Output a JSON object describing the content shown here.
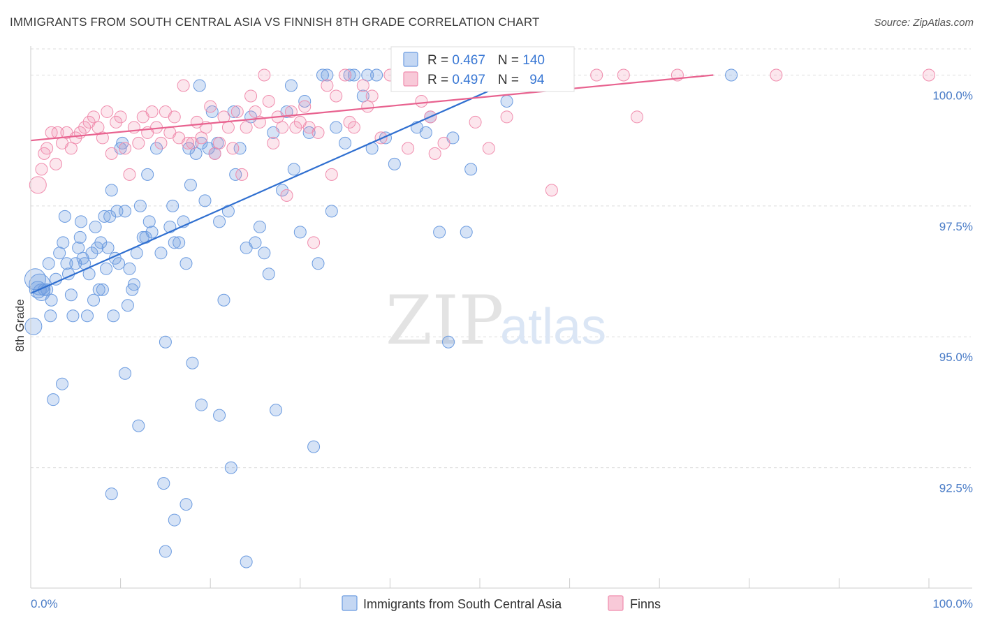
{
  "header": {
    "title": "IMMIGRANTS FROM SOUTH CENTRAL ASIA VS FINNISH 8TH GRADE CORRELATION CHART",
    "source": "Source: ZipAtlas.com"
  },
  "watermark": {
    "zip": "ZIP",
    "atlas": "atlas"
  },
  "legend": {
    "rows": [
      {
        "r_label": "R = ",
        "r_value": "0.467",
        "n_label": "N = ",
        "n_value": "140",
        "color": "#6b9be0"
      },
      {
        "r_label": "R = ",
        "r_value": "0.497",
        "n_label": "N = ",
        "n_value": "94",
        "color": "#f08cad"
      }
    ]
  },
  "bottom_legend": [
    {
      "label": "Immigrants from South Central Asia",
      "color": "#6b9be0"
    },
    {
      "label": "Finns",
      "color": "#f08cad"
    }
  ],
  "chart_data": {
    "type": "scatter",
    "title": "IMMIGRANTS FROM SOUTH CENTRAL ASIA VS FINNISH 8TH GRADE CORRELATION CHART",
    "xlabel": "",
    "ylabel": "8th Grade",
    "xlim": [
      0,
      100
    ],
    "ylim": [
      90.2,
      100.5
    ],
    "y_ticks": [
      {
        "value": 92.5,
        "label": "92.5%"
      },
      {
        "value": 95.0,
        "label": "95.0%"
      },
      {
        "value": 97.5,
        "label": "97.5%"
      },
      {
        "value": 100.0,
        "label": "100.0%"
      }
    ],
    "x_tick_labels": {
      "min": "0.0%",
      "max": "100.0%"
    },
    "grid": true,
    "series": [
      {
        "name": "Immigrants from South Central Asia",
        "color": "#6b9be0",
        "trend": {
          "x": [
            0.0,
            55.0
          ],
          "y": [
            95.83,
            100.0
          ]
        },
        "points": [
          [
            0.3,
            95.2
          ],
          [
            0.5,
            96.1
          ],
          [
            0.8,
            95.9
          ],
          [
            1.0,
            96.0
          ],
          [
            1.2,
            95.85
          ],
          [
            1.5,
            95.9
          ],
          [
            1.8,
            95.9
          ],
          [
            2.0,
            96.4
          ],
          [
            2.2,
            95.4
          ],
          [
            2.3,
            95.7
          ],
          [
            2.5,
            93.8
          ],
          [
            2.8,
            96.1
          ],
          [
            3.2,
            96.6
          ],
          [
            3.5,
            94.1
          ],
          [
            3.6,
            96.8
          ],
          [
            3.8,
            97.3
          ],
          [
            4.0,
            96.4
          ],
          [
            4.2,
            96.2
          ],
          [
            4.5,
            95.8
          ],
          [
            4.7,
            95.4
          ],
          [
            5.0,
            96.4
          ],
          [
            5.3,
            96.7
          ],
          [
            5.5,
            96.9
          ],
          [
            5.6,
            97.2
          ],
          [
            5.8,
            96.5
          ],
          [
            6.0,
            96.4
          ],
          [
            6.3,
            95.4
          ],
          [
            6.5,
            96.2
          ],
          [
            6.8,
            96.6
          ],
          [
            7.0,
            95.7
          ],
          [
            7.2,
            97.1
          ],
          [
            7.4,
            96.7
          ],
          [
            7.6,
            95.9
          ],
          [
            7.8,
            96.8
          ],
          [
            8.0,
            95.9
          ],
          [
            8.2,
            97.3
          ],
          [
            8.4,
            96.3
          ],
          [
            8.6,
            96.7
          ],
          [
            8.8,
            97.3
          ],
          [
            9.0,
            97.8
          ],
          [
            9.2,
            95.4
          ],
          [
            9.4,
            96.5
          ],
          [
            9.6,
            97.4
          ],
          [
            9.8,
            96.4
          ],
          [
            10.0,
            98.6
          ],
          [
            10.2,
            98.7
          ],
          [
            10.5,
            97.4
          ],
          [
            10.8,
            95.6
          ],
          [
            11.0,
            96.3
          ],
          [
            11.3,
            95.9
          ],
          [
            11.5,
            96.0
          ],
          [
            11.8,
            96.6
          ],
          [
            12.2,
            97.5
          ],
          [
            12.5,
            96.9
          ],
          [
            12.8,
            96.9
          ],
          [
            13.0,
            98.1
          ],
          [
            13.2,
            97.2
          ],
          [
            13.5,
            97.0
          ],
          [
            14.0,
            98.6
          ],
          [
            14.5,
            96.6
          ],
          [
            15.0,
            94.9
          ],
          [
            15.5,
            97.1
          ],
          [
            15.8,
            97.5
          ],
          [
            16.0,
            96.8
          ],
          [
            16.5,
            96.8
          ],
          [
            17.0,
            97.2
          ],
          [
            17.3,
            96.4
          ],
          [
            17.6,
            98.6
          ],
          [
            17.8,
            97.9
          ],
          [
            18.0,
            94.5
          ],
          [
            18.4,
            98.5
          ],
          [
            18.8,
            99.8
          ],
          [
            19.0,
            98.7
          ],
          [
            19.4,
            97.6
          ],
          [
            19.8,
            98.6
          ],
          [
            20.2,
            99.3
          ],
          [
            20.5,
            98.5
          ],
          [
            20.8,
            98.7
          ],
          [
            21.0,
            97.2
          ],
          [
            21.5,
            95.7
          ],
          [
            22.0,
            97.4
          ],
          [
            22.3,
            92.5
          ],
          [
            22.6,
            99.3
          ],
          [
            22.8,
            98.1
          ],
          [
            23.3,
            98.6
          ],
          [
            24.0,
            96.7
          ],
          [
            24.5,
            99.2
          ],
          [
            25.0,
            96.8
          ],
          [
            25.5,
            97.1
          ],
          [
            26.0,
            96.6
          ],
          [
            26.5,
            96.2
          ],
          [
            27.0,
            98.9
          ],
          [
            27.3,
            93.6
          ],
          [
            28.0,
            97.8
          ],
          [
            28.5,
            99.3
          ],
          [
            29.0,
            99.8
          ],
          [
            29.3,
            98.2
          ],
          [
            30.0,
            97.0
          ],
          [
            30.5,
            99.5
          ],
          [
            31.0,
            98.9
          ],
          [
            31.5,
            92.9
          ],
          [
            32.0,
            96.4
          ],
          [
            32.5,
            100.0
          ],
          [
            33.0,
            100.0
          ],
          [
            33.5,
            97.4
          ],
          [
            34.0,
            99.0
          ],
          [
            35.0,
            98.7
          ],
          [
            35.5,
            100.0
          ],
          [
            36.0,
            100.0
          ],
          [
            37.0,
            99.6
          ],
          [
            37.5,
            100.0
          ],
          [
            38.0,
            98.6
          ],
          [
            38.5,
            100.0
          ],
          [
            39.5,
            98.8
          ],
          [
            40.5,
            98.3
          ],
          [
            41.0,
            100.0
          ],
          [
            42.0,
            100.0
          ],
          [
            43.0,
            99.0
          ],
          [
            44.0,
            98.9
          ],
          [
            44.5,
            99.2
          ],
          [
            45.5,
            97.0
          ],
          [
            46.0,
            100.0
          ],
          [
            46.5,
            94.9
          ],
          [
            47.0,
            98.8
          ],
          [
            48.5,
            97.0
          ],
          [
            49.0,
            98.2
          ],
          [
            53.0,
            99.5
          ],
          [
            54.0,
            99.8
          ],
          [
            55.0,
            100.0
          ],
          [
            78.0,
            100.0
          ],
          [
            9.0,
            92.0
          ],
          [
            12.0,
            93.3
          ],
          [
            14.8,
            92.2
          ],
          [
            16.0,
            91.5
          ],
          [
            17.3,
            91.8
          ],
          [
            19.0,
            93.7
          ],
          [
            21.0,
            93.5
          ],
          [
            24.0,
            90.7
          ],
          [
            15.0,
            90.9
          ],
          [
            10.5,
            94.3
          ]
        ]
      },
      {
        "name": "Finns",
        "color": "#f08cad",
        "trend": {
          "x": [
            0.0,
            76.0
          ],
          "y": [
            98.75,
            100.0
          ]
        },
        "points": [
          [
            0.8,
            97.9
          ],
          [
            1.2,
            98.2
          ],
          [
            1.5,
            98.5
          ],
          [
            1.8,
            98.6
          ],
          [
            2.3,
            98.9
          ],
          [
            2.8,
            98.3
          ],
          [
            3.0,
            98.9
          ],
          [
            3.5,
            98.7
          ],
          [
            4.0,
            98.9
          ],
          [
            4.5,
            98.6
          ],
          [
            5.0,
            98.8
          ],
          [
            5.5,
            98.9
          ],
          [
            6.0,
            99.0
          ],
          [
            6.5,
            99.1
          ],
          [
            7.0,
            99.2
          ],
          [
            7.5,
            99.0
          ],
          [
            8.0,
            98.8
          ],
          [
            8.5,
            99.3
          ],
          [
            9.0,
            98.5
          ],
          [
            9.5,
            99.1
          ],
          [
            10.0,
            99.2
          ],
          [
            10.5,
            98.6
          ],
          [
            11.0,
            98.1
          ],
          [
            11.5,
            99.0
          ],
          [
            12.0,
            98.7
          ],
          [
            12.5,
            99.2
          ],
          [
            13.0,
            98.9
          ],
          [
            13.5,
            99.3
          ],
          [
            14.0,
            99.0
          ],
          [
            14.5,
            98.7
          ],
          [
            15.0,
            99.3
          ],
          [
            15.5,
            98.9
          ],
          [
            16.0,
            99.2
          ],
          [
            16.5,
            98.8
          ],
          [
            17.0,
            99.8
          ],
          [
            17.5,
            98.7
          ],
          [
            18.0,
            98.7
          ],
          [
            18.5,
            99.1
          ],
          [
            19.0,
            98.8
          ],
          [
            19.5,
            99.0
          ],
          [
            20.0,
            99.4
          ],
          [
            20.5,
            98.5
          ],
          [
            21.0,
            98.7
          ],
          [
            21.5,
            99.2
          ],
          [
            22.0,
            99.0
          ],
          [
            22.5,
            98.6
          ],
          [
            23.0,
            99.3
          ],
          [
            23.5,
            98.1
          ],
          [
            24.0,
            99.0
          ],
          [
            24.5,
            99.6
          ],
          [
            25.0,
            99.3
          ],
          [
            25.5,
            99.1
          ],
          [
            26.0,
            100.0
          ],
          [
            26.5,
            99.5
          ],
          [
            27.0,
            98.7
          ],
          [
            27.5,
            99.2
          ],
          [
            28.0,
            99.0
          ],
          [
            28.5,
            97.7
          ],
          [
            29.0,
            99.3
          ],
          [
            29.5,
            99.0
          ],
          [
            30.0,
            99.1
          ],
          [
            30.5,
            99.4
          ],
          [
            31.0,
            99.0
          ],
          [
            31.5,
            96.8
          ],
          [
            32.0,
            98.9
          ],
          [
            33.0,
            99.8
          ],
          [
            33.5,
            98.1
          ],
          [
            34.0,
            99.6
          ],
          [
            35.0,
            100.0
          ],
          [
            35.5,
            99.1
          ],
          [
            36.0,
            99.0
          ],
          [
            37.0,
            99.8
          ],
          [
            37.5,
            99.4
          ],
          [
            38.0,
            99.6
          ],
          [
            39.0,
            98.8
          ],
          [
            40.0,
            100.0
          ],
          [
            41.0,
            100.0
          ],
          [
            42.0,
            98.6
          ],
          [
            43.5,
            99.5
          ],
          [
            44.5,
            99.2
          ],
          [
            45.0,
            98.5
          ],
          [
            46.0,
            98.7
          ],
          [
            47.0,
            100.0
          ],
          [
            49.5,
            99.1
          ],
          [
            51.0,
            98.6
          ],
          [
            53.0,
            99.2
          ],
          [
            58.0,
            97.8
          ],
          [
            59.0,
            100.0
          ],
          [
            63.0,
            100.0
          ],
          [
            66.0,
            100.0
          ],
          [
            67.5,
            99.2
          ],
          [
            72.0,
            100.0
          ],
          [
            83.0,
            100.0
          ],
          [
            100.0,
            100.0
          ]
        ]
      }
    ]
  }
}
